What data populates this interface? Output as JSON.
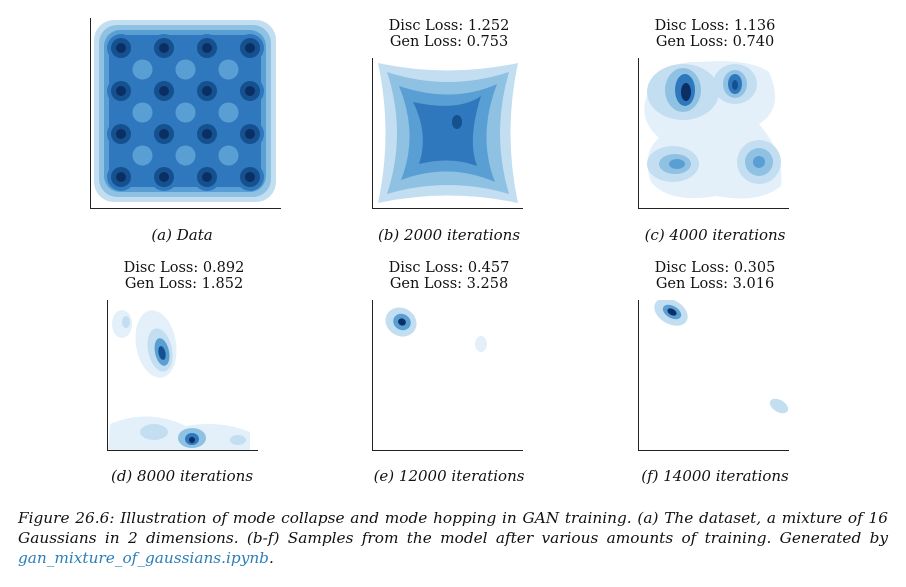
{
  "panels": [
    {
      "id": "a",
      "caption": "(a) Data",
      "disc": "",
      "gen": ""
    },
    {
      "id": "b",
      "caption": "(b) 2000 iterations",
      "disc": "Disc Loss: 1.252",
      "gen": "Gen Loss: 0.753"
    },
    {
      "id": "c",
      "caption": "(c) 4000 iterations",
      "disc": "Disc Loss: 1.136",
      "gen": "Gen Loss: 0.740"
    },
    {
      "id": "d",
      "caption": "(d) 8000 iterations",
      "disc": "Disc Loss: 0.892",
      "gen": "Gen Loss: 1.852"
    },
    {
      "id": "e",
      "caption": "(e) 12000 iterations",
      "disc": "Disc Loss: 0.457",
      "gen": "Gen Loss: 3.258"
    },
    {
      "id": "f",
      "caption": "(f) 14000 iterations",
      "disc": "Disc Loss: 0.305",
      "gen": "Gen Loss: 3.016"
    }
  ],
  "figure_caption": {
    "text": "Figure 26.6: Illustration of mode collapse and mode hopping in GAN training. (a) The dataset, a mixture of 16 Gaussians in 2 dimensions. (b-f) Samples from the model after various amounts of training. Generated by ",
    "link": "gan_mixture_of_gaussians.ipynb",
    "end": "."
  },
  "colors": {
    "level1": "#e3f0fa",
    "level2": "#c3def1",
    "level3": "#8fc1e3",
    "level4": "#5a9fd4",
    "level5": "#2f78bd",
    "level6": "#15508f",
    "level7": "#0b2f63"
  }
}
